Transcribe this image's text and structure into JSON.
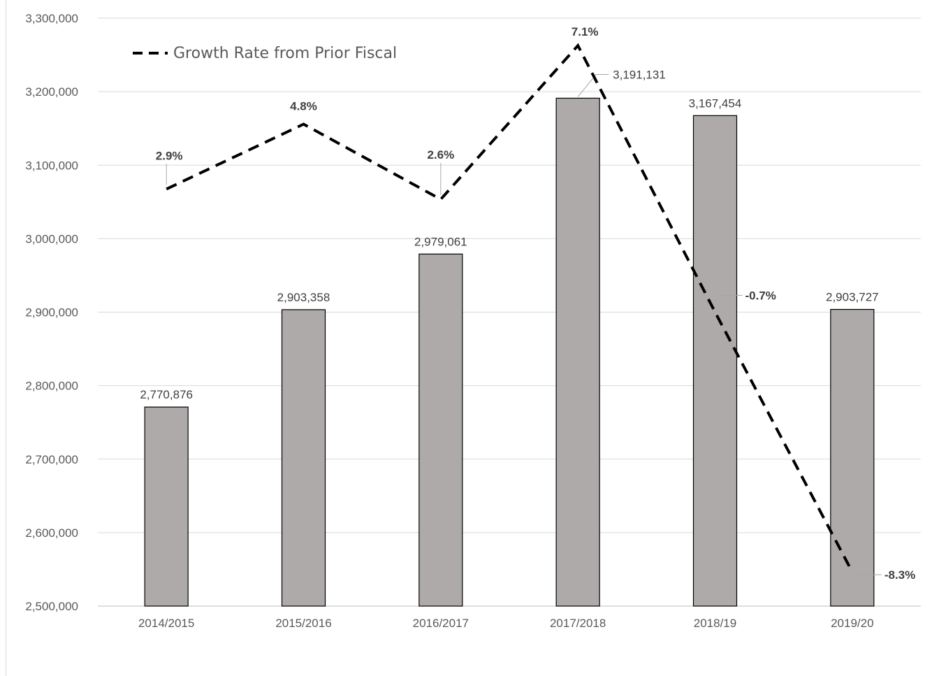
{
  "chart_data": {
    "type": "bar",
    "categories": [
      "2014/2015",
      "2015/2016",
      "2016/2017",
      "2017/2018",
      "2018/19",
      "2019/20"
    ],
    "series": [
      {
        "type": "bar",
        "values": [
          2770876,
          2903358,
          2979061,
          3191131,
          3167454,
          2903727
        ],
        "labels": [
          "2,770,876",
          "2,903,358",
          "2,979,061",
          "3,191,131",
          "3,167,454",
          "2,903,727"
        ],
        "color": "#aeaaaa"
      },
      {
        "name": "Growth Rate from Prior Fiscal",
        "type": "line",
        "style": "dashed",
        "values": [
          2.9,
          4.8,
          2.6,
          7.1,
          -0.7,
          -8.3
        ],
        "labels": [
          "2.9%",
          "4.8%",
          "2.6%",
          "7.1%",
          "-0.7%",
          "-8.3%"
        ],
        "color": "#000000"
      }
    ],
    "y_ticks": [
      "2,500,000",
      "2,600,000",
      "2,700,000",
      "2,800,000",
      "2,900,000",
      "3,000,000",
      "3,100,000",
      "3,200,000",
      "3,300,000"
    ],
    "ylim": [
      2500000,
      3300000
    ],
    "secondary_ylim": [
      -9.3,
      7.9
    ],
    "grid": true,
    "legend_position": "top-left"
  }
}
